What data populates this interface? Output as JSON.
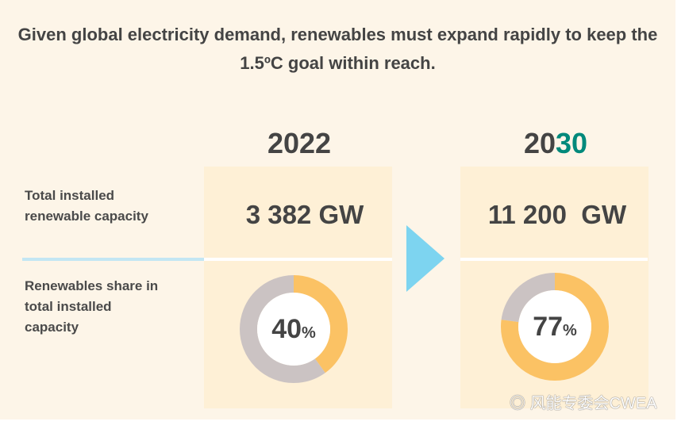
{
  "title": "Given global electricity demand, renewables must expand rapidly to keep the 1.5ºC goal within reach.",
  "rows": {
    "capacity_label": "Total installed renewable capacity",
    "share_label": "Renewables share in total installed capacity"
  },
  "y2022": {
    "year": "2022",
    "capacity": "3 382 GW",
    "share": 40,
    "share_text": "40",
    "pct": "%"
  },
  "y2030": {
    "year_prefix": "20",
    "year_suffix": "30",
    "capacity": "11 200  GW",
    "share": 77,
    "share_text": "77",
    "pct": "%"
  },
  "watermark": "风能专委会CWEA",
  "colors": {
    "renewable": "#fbc264",
    "other": "#cbc3c3",
    "accent": "#00897b",
    "arrow": "#7dd4f0"
  }
}
